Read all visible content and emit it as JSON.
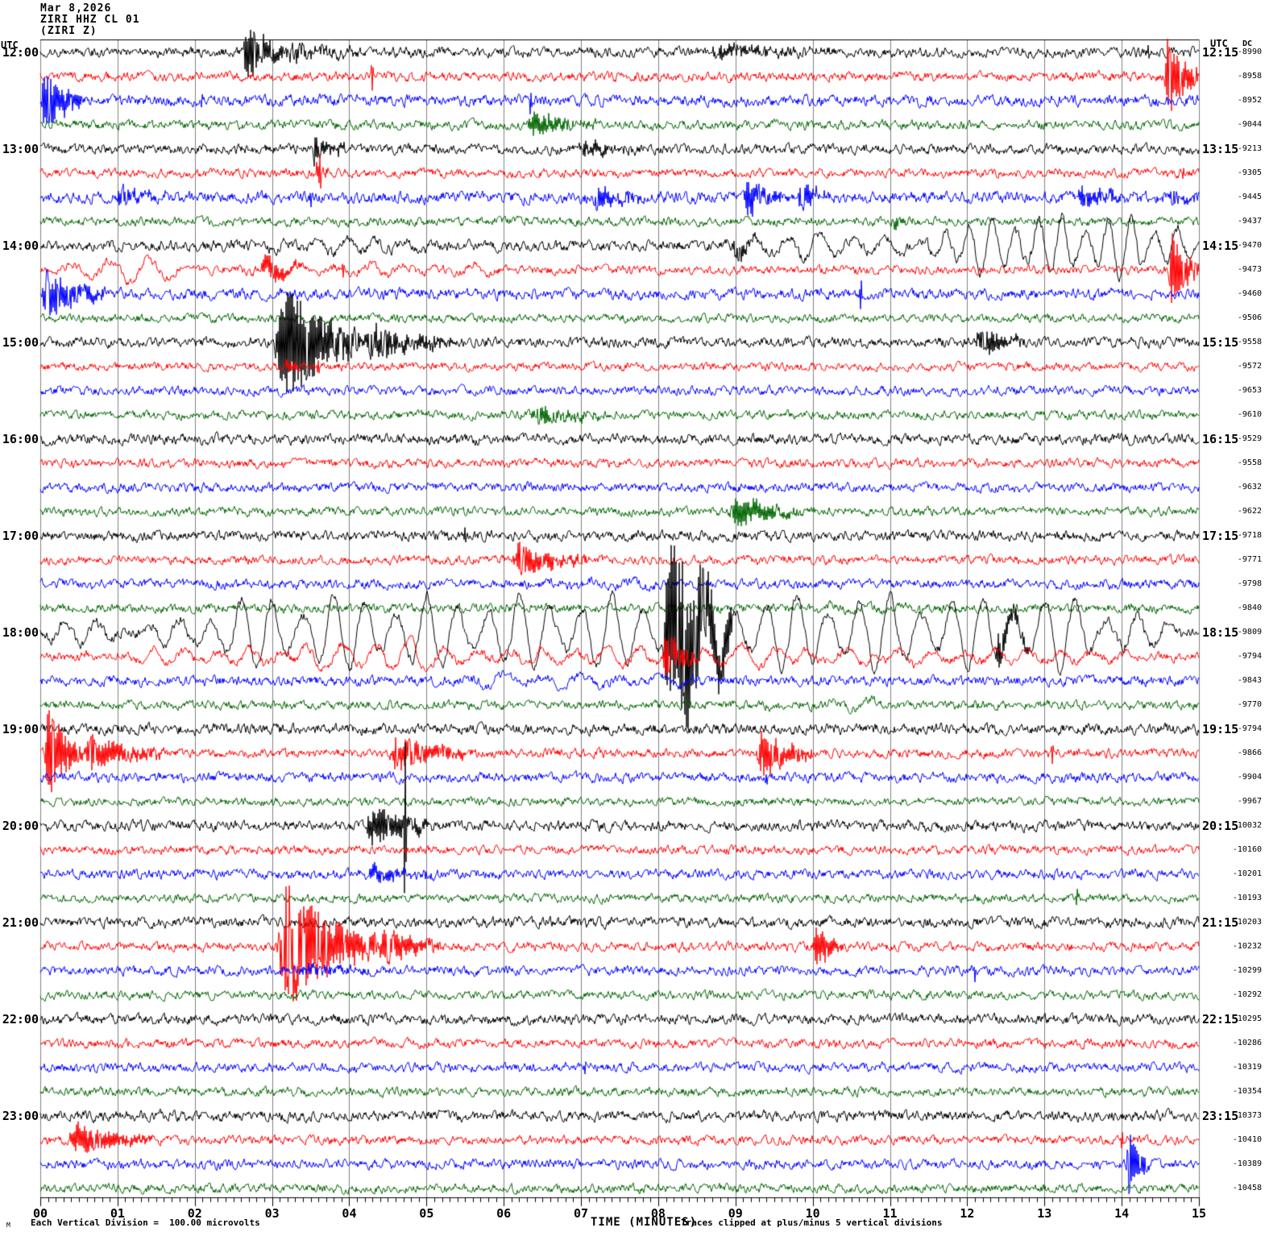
{
  "title": {
    "date": "Mar 8,2026",
    "station": "ZIRI HHZ CL 01",
    "channel": "(ZIRI Z)"
  },
  "axis": {
    "left_header": "UTC",
    "right_header": "UTC",
    "dc_header": "DC",
    "xlabel": "TIME (MINUTES)",
    "minute_labels": [
      "00",
      "01",
      "02",
      "03",
      "04",
      "05",
      "06",
      "07",
      "08",
      "09",
      "10",
      "11",
      "12",
      "13",
      "14",
      "15"
    ],
    "footer_mark": "M",
    "footer_left": "Each Vertical Division =  100.00 microvolts",
    "footer_right": "Traces clipped at plus/minus 5 vertical divisions"
  },
  "chart_data": {
    "type": "line",
    "subtype": "helicorder-seismogram",
    "title": "ZIRI HHZ CL 01 (ZIRI Z) Mar 8,2026",
    "xlabel": "TIME (MINUTES)",
    "x_range_minutes": [
      0,
      15
    ],
    "minutes_per_row": 15,
    "rows_per_hour": 4,
    "grid": true,
    "colors": {
      "black": "#000000",
      "red": "#FF0000",
      "blue": "#0000FF",
      "green": "#006600",
      "grid": "#808080"
    },
    "clip_divisions": 5,
    "microvolts_per_division": 100.0,
    "rows": [
      {
        "color": "black",
        "left_label": "12:00",
        "right_label": "12:15",
        "dc": "-8990",
        "noise": 3.0,
        "bursts": [
          [
            2.62,
            3.15,
            40
          ],
          [
            3.15,
            4.2,
            10
          ],
          [
            8.6,
            10.4,
            8
          ]
        ],
        "spikes": [
          [
            14.35,
            8
          ]
        ],
        "lp": []
      },
      {
        "color": "red",
        "dc": "-8958",
        "noise": 2.8,
        "bursts": [
          [
            14.55,
            15,
            55
          ]
        ],
        "spikes": [
          [
            4.3,
            22
          ]
        ],
        "lp": []
      },
      {
        "color": "blue",
        "dc": "-8952",
        "noise": 3.4,
        "bursts": [
          [
            0.0,
            0.55,
            40
          ]
        ],
        "spikes": [
          [
            2.1,
            10
          ],
          [
            6.35,
            22
          ]
        ],
        "lp": []
      },
      {
        "color": "green",
        "dc": "-9044",
        "noise": 2.8,
        "bursts": [
          [
            6.3,
            7.2,
            16
          ]
        ],
        "spikes": [],
        "lp": []
      },
      {
        "color": "black",
        "left_label": "13:00",
        "right_label": "13:15",
        "dc": "-9213",
        "noise": 3.0,
        "bursts": [
          [
            3.5,
            3.95,
            18
          ],
          [
            6.95,
            7.7,
            10
          ]
        ],
        "spikes": [],
        "lp": []
      },
      {
        "color": "red",
        "dc": "-9305",
        "noise": 2.6,
        "bursts": [
          [
            3.55,
            3.8,
            12
          ]
        ],
        "spikes": [
          [
            3.62,
            26
          ],
          [
            14.8,
            14
          ]
        ],
        "lp": []
      },
      {
        "color": "blue",
        "dc": "-9445",
        "noise": 3.6,
        "bursts": [
          [
            0.95,
            1.65,
            12
          ],
          [
            7.15,
            7.75,
            16
          ],
          [
            9.1,
            9.6,
            26
          ],
          [
            9.8,
            10.15,
            22
          ],
          [
            13.4,
            14.3,
            14
          ],
          [
            14.6,
            15,
            10
          ]
        ],
        "spikes": [
          [
            3.5,
            16
          ]
        ],
        "lp": []
      },
      {
        "color": "green",
        "dc": "-9437",
        "noise": 2.7,
        "bursts": [
          [
            11.0,
            11.35,
            8
          ]
        ],
        "spikes": [],
        "lp": []
      },
      {
        "color": "black",
        "left_label": "14:00",
        "right_label": "14:15",
        "dc": "-9470",
        "noise": 3.2,
        "bursts": [
          [
            8.95,
            9.35,
            12
          ]
        ],
        "spikes": [],
        "lp": [
          [
            2.8,
            5.2,
            10,
            0.38
          ],
          [
            8.8,
            11.4,
            16,
            0.42
          ],
          [
            11.4,
            15,
            38,
            0.3
          ]
        ]
      },
      {
        "color": "red",
        "dc": "-9473",
        "noise": 2.6,
        "bursts": [
          [
            2.85,
            3.4,
            18
          ],
          [
            14.6,
            15,
            60
          ]
        ],
        "spikes": [
          [
            3.92,
            14
          ]
        ],
        "lp": [
          [
            0,
            2.1,
            16,
            0.5
          ],
          [
            2.1,
            6.2,
            7,
            0.45
          ]
        ]
      },
      {
        "color": "blue",
        "dc": "-9460",
        "noise": 3.3,
        "bursts": [
          [
            0,
            0.85,
            32
          ]
        ],
        "spikes": [
          [
            10.62,
            28
          ]
        ],
        "lp": []
      },
      {
        "color": "green",
        "dc": "-9506",
        "noise": 2.5,
        "bursts": [],
        "spikes": [],
        "lp": []
      },
      {
        "color": "black",
        "left_label": "15:00",
        "right_label": "15:15",
        "dc": "-9558",
        "noise": 3.0,
        "bursts": [
          [
            3.02,
            4.15,
            85
          ],
          [
            4.15,
            5.4,
            22
          ],
          [
            12.1,
            12.75,
            22
          ]
        ],
        "spikes": [],
        "lp": []
      },
      {
        "color": "red",
        "dc": "-9572",
        "noise": 2.5,
        "bursts": [
          [
            3.1,
            4.0,
            6
          ]
        ],
        "spikes": [
          [
            3.6,
            10
          ]
        ],
        "lp": []
      },
      {
        "color": "blue",
        "dc": "-9653",
        "noise": 2.7,
        "bursts": [],
        "spikes": [],
        "lp": []
      },
      {
        "color": "green",
        "dc": "-9610",
        "noise": 2.6,
        "bursts": [
          [
            6.35,
            7.25,
            13
          ]
        ],
        "spikes": [],
        "lp": []
      },
      {
        "color": "black",
        "left_label": "16:00",
        "right_label": "16:15",
        "dc": "-9529",
        "noise": 3.2,
        "bursts": [],
        "spikes": [],
        "lp": []
      },
      {
        "color": "red",
        "dc": "-9558",
        "noise": 2.7,
        "bursts": [],
        "spikes": [],
        "lp": []
      },
      {
        "color": "blue",
        "dc": "-9632",
        "noise": 2.8,
        "bursts": [],
        "spikes": [],
        "lp": []
      },
      {
        "color": "green",
        "dc": "-9622",
        "noise": 2.6,
        "bursts": [
          [
            8.9,
            9.85,
            20
          ]
        ],
        "spikes": [],
        "lp": []
      },
      {
        "color": "black",
        "left_label": "17:00",
        "right_label": "17:15",
        "dc": "-9718",
        "noise": 3.1,
        "bursts": [],
        "spikes": [
          [
            5.5,
            14
          ]
        ],
        "lp": []
      },
      {
        "color": "red",
        "dc": "-9771",
        "noise": 2.7,
        "bursts": [
          [
            6.1,
            7.15,
            20
          ]
        ],
        "spikes": [],
        "lp": []
      },
      {
        "color": "blue",
        "dc": "-9798",
        "noise": 2.9,
        "bursts": [],
        "spikes": [],
        "lp": [
          [
            6.5,
            8.5,
            5,
            0.5
          ]
        ]
      },
      {
        "color": "green",
        "dc": "-9840",
        "noise": 2.7,
        "bursts": [],
        "spikes": [],
        "lp": [
          [
            9.8,
            11.5,
            6,
            0.45
          ]
        ]
      },
      {
        "color": "black",
        "left_label": "18:00",
        "right_label": "18:15",
        "dc": "-9809",
        "noise": 3.0,
        "bursts": [
          [
            8.05,
            8.95,
            140
          ],
          [
            12.35,
            12.85,
            25
          ]
        ],
        "spikes": [],
        "lp": [
          [
            0,
            1.1,
            14,
            0.42
          ],
          [
            1.1,
            15,
            48,
            0.4
          ]
        ]
      },
      {
        "color": "red",
        "dc": "-9794",
        "noise": 2.6,
        "bursts": [
          [
            8.05,
            8.55,
            30
          ]
        ],
        "spikes": [],
        "lp": [
          [
            0,
            15,
            10,
            0.42
          ],
          [
            3.2,
            5.1,
            18,
            0.45
          ],
          [
            8.9,
            11,
            14,
            0.45
          ]
        ]
      },
      {
        "color": "blue",
        "dc": "-9843",
        "noise": 3.0,
        "bursts": [],
        "spikes": [],
        "lp": [
          [
            5.4,
            8.6,
            8,
            0.5
          ]
        ]
      },
      {
        "color": "green",
        "dc": "-9770",
        "noise": 2.7,
        "bursts": [],
        "spikes": [],
        "lp": [
          [
            9.3,
            11,
            6,
            0.5
          ]
        ]
      },
      {
        "color": "black",
        "left_label": "19:00",
        "right_label": "19:15",
        "dc": "-9794",
        "noise": 3.3,
        "bursts": [],
        "spikes": [],
        "lp": []
      },
      {
        "color": "red",
        "dc": "-9866",
        "noise": 2.7,
        "bursts": [
          [
            0.05,
            0.55,
            60
          ],
          [
            0.55,
            1.6,
            25
          ],
          [
            4.5,
            5.6,
            22
          ],
          [
            9.25,
            10.0,
            30
          ]
        ],
        "spikes": [
          [
            13.1,
            16
          ]
        ],
        "lp": []
      },
      {
        "color": "blue",
        "dc": "-9904",
        "noise": 3.0,
        "bursts": [],
        "spikes": [
          [
            9.4,
            12
          ]
        ],
        "lp": []
      },
      {
        "color": "green",
        "dc": "-9967",
        "noise": 2.5,
        "bursts": [],
        "spikes": [],
        "lp": []
      },
      {
        "color": "black",
        "left_label": "20:00",
        "right_label": "20:15",
        "dc": "-10032",
        "noise": 3.2,
        "bursts": [
          [
            4.2,
            5.1,
            28
          ]
        ],
        "spikes": [
          [
            4.72,
            150
          ]
        ],
        "lp": []
      },
      {
        "color": "red",
        "dc": "-10160",
        "noise": 2.6,
        "bursts": [],
        "spikes": [],
        "lp": []
      },
      {
        "color": "blue",
        "dc": "-10201",
        "noise": 2.9,
        "bursts": [
          [
            4.2,
            5.2,
            10
          ]
        ],
        "spikes": [],
        "lp": []
      },
      {
        "color": "green",
        "dc": "-10193",
        "noise": 2.6,
        "bursts": [],
        "spikes": [
          [
            13.42,
            13
          ]
        ],
        "lp": []
      },
      {
        "color": "black",
        "left_label": "21:00",
        "right_label": "21:15",
        "dc": "-10203",
        "noise": 3.2,
        "bursts": [],
        "spikes": [],
        "lp": []
      },
      {
        "color": "red",
        "dc": "-10232",
        "noise": 2.7,
        "bursts": [
          [
            3.05,
            4.35,
            80
          ],
          [
            4.35,
            5.3,
            22
          ],
          [
            10.0,
            10.4,
            28
          ]
        ],
        "spikes": [],
        "lp": []
      },
      {
        "color": "blue",
        "dc": "-10299",
        "noise": 2.9,
        "bursts": [
          [
            3.3,
            4.3,
            6
          ]
        ],
        "spikes": [
          [
            12.1,
            14
          ]
        ],
        "lp": []
      },
      {
        "color": "green",
        "dc": "-10292",
        "noise": 2.6,
        "bursts": [],
        "spikes": [],
        "lp": []
      },
      {
        "color": "black",
        "left_label": "22:00",
        "right_label": "22:15",
        "dc": "-10295",
        "noise": 3.1,
        "bursts": [],
        "spikes": [],
        "lp": []
      },
      {
        "color": "red",
        "dc": "-10286",
        "noise": 2.7,
        "bursts": [],
        "spikes": [],
        "lp": []
      },
      {
        "color": "blue",
        "dc": "-10319",
        "noise": 2.8,
        "bursts": [],
        "spikes": [
          [
            7.05,
            9
          ]
        ],
        "lp": []
      },
      {
        "color": "green",
        "dc": "-10354",
        "noise": 2.7,
        "bursts": [],
        "spikes": [],
        "lp": []
      },
      {
        "color": "black",
        "left_label": "23:00",
        "right_label": "23:15",
        "dc": "-10373",
        "noise": 3.2,
        "bursts": [],
        "spikes": [],
        "lp": []
      },
      {
        "color": "red",
        "dc": "-10410",
        "noise": 2.7,
        "bursts": [
          [
            0.35,
            1.45,
            20
          ]
        ],
        "spikes": [
          [
            14.0,
            16
          ]
        ],
        "lp": []
      },
      {
        "color": "blue",
        "dc": "-10389",
        "noise": 2.9,
        "bursts": [
          [
            14.05,
            14.35,
            45
          ]
        ],
        "spikes": [],
        "lp": []
      },
      {
        "color": "green",
        "dc": "-10458",
        "noise": 2.7,
        "bursts": [],
        "spikes": [],
        "lp": []
      }
    ]
  }
}
